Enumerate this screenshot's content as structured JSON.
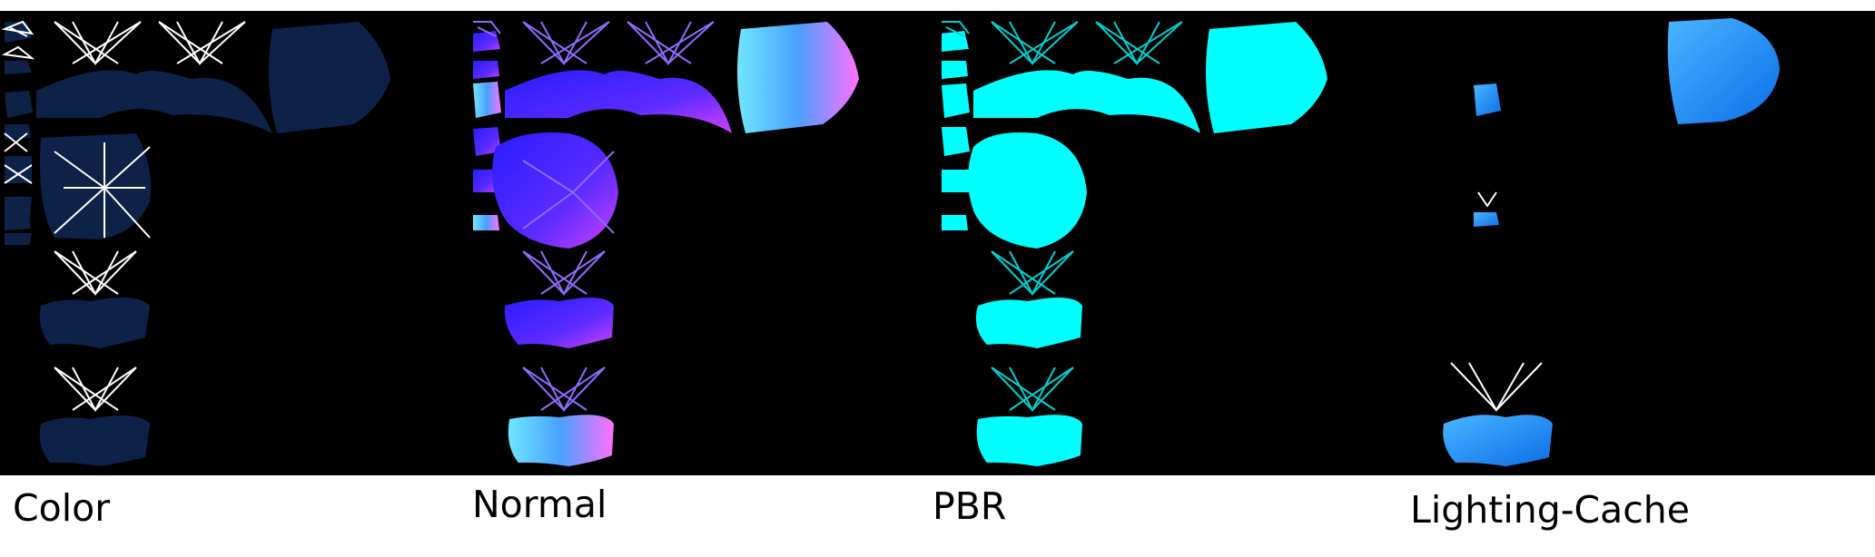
{
  "panels": [
    {
      "label": "Color",
      "fill": "#0d2246",
      "stroke": "#ffffff"
    },
    {
      "label": "Normal",
      "fill": "#4a2bff",
      "stroke": "#8f6bff"
    },
    {
      "label": "PBR",
      "fill": "#00ffff",
      "stroke": "#00d0d0"
    },
    {
      "label": "Lighting-Cache",
      "fill": "#1d8dff",
      "stroke": "#ffffff"
    }
  ]
}
